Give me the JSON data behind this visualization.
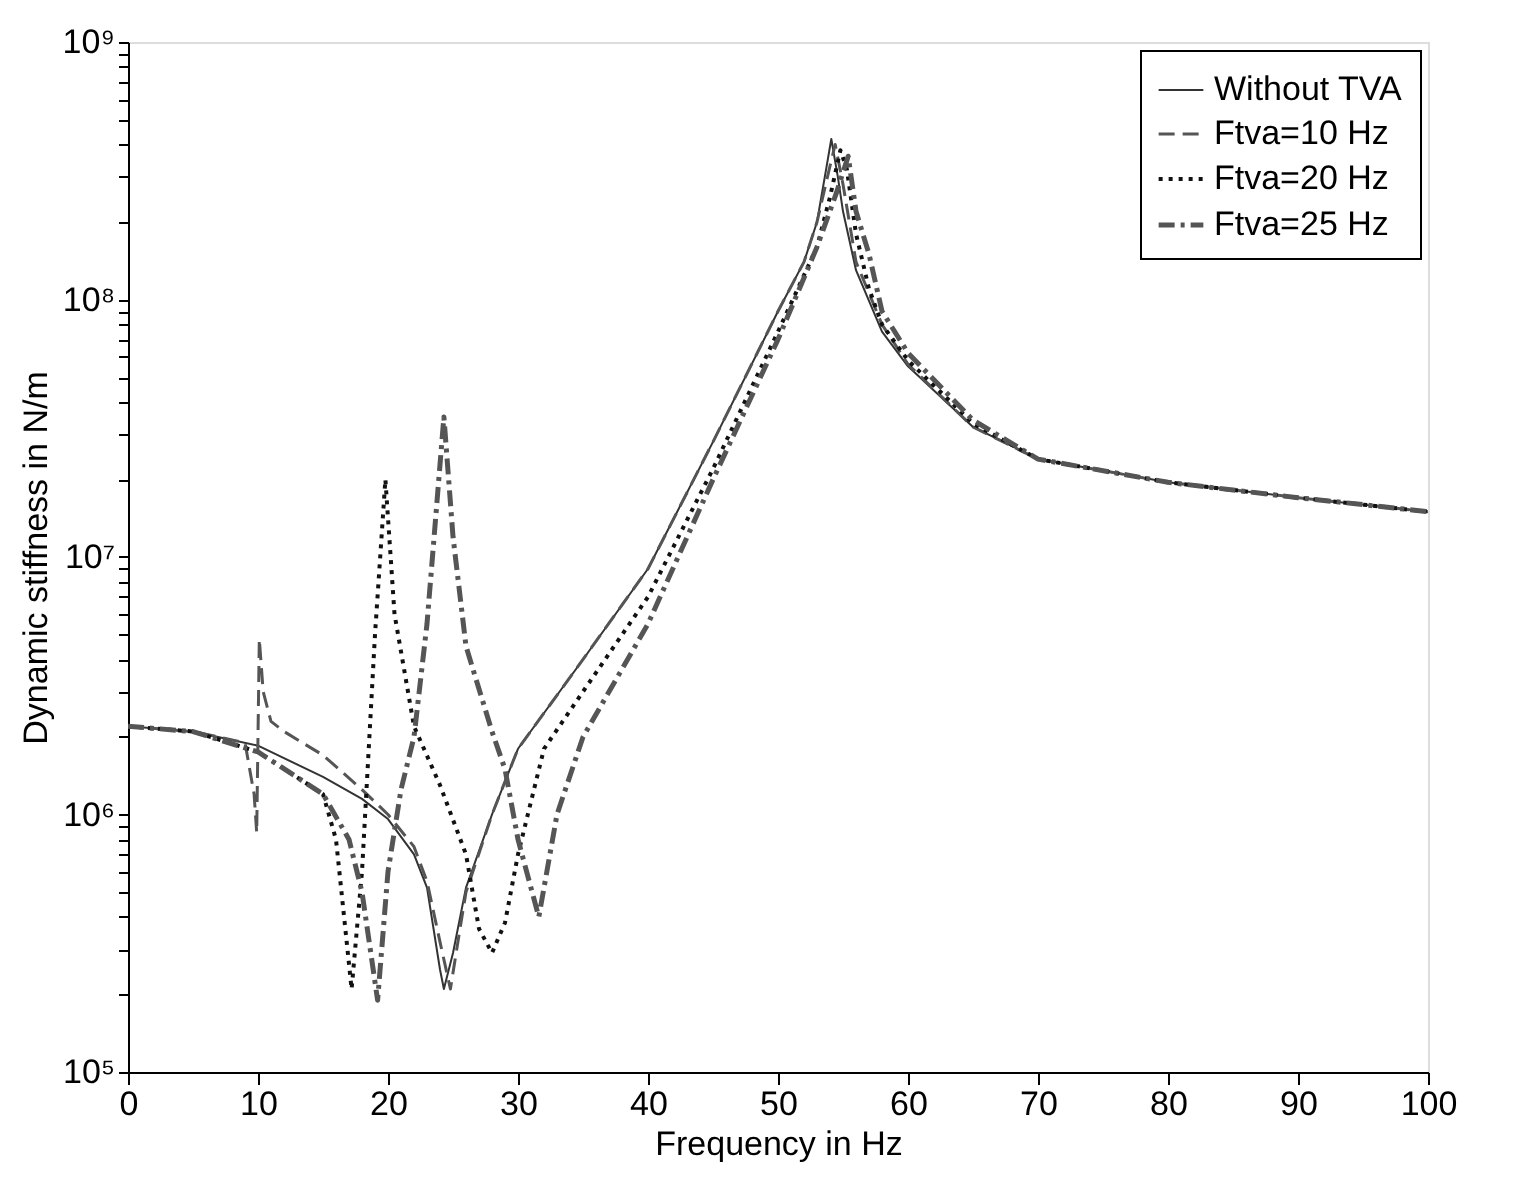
{
  "chart_data": {
    "type": "line",
    "xlabel": "Frequency in Hz",
    "ylabel": "Dynamic stiffness in N/m",
    "log": "y",
    "grid": false,
    "legend": "top right",
    "xlim": [
      0,
      100
    ],
    "xticks": [
      0,
      10,
      20,
      30,
      40,
      50,
      60,
      70,
      80,
      90,
      100
    ],
    "ylim": [
      100000,
      1000000000
    ],
    "yticks": [
      {
        "value": 100000,
        "label": "10⁵"
      },
      {
        "value": 200000,
        "label": null
      },
      {
        "value": 300000,
        "label": null
      },
      {
        "value": 400000,
        "label": null
      },
      {
        "value": 500000,
        "label": null
      },
      {
        "value": 600000,
        "label": null
      },
      {
        "value": 700000,
        "label": null
      },
      {
        "value": 800000,
        "label": null
      },
      {
        "value": 900000,
        "label": null
      },
      {
        "value": 1000000,
        "label": "10⁶"
      },
      {
        "value": 2000000,
        "label": null
      },
      {
        "value": 3000000,
        "label": null
      },
      {
        "value": 4000000,
        "label": null
      },
      {
        "value": 5000000,
        "label": null
      },
      {
        "value": 6000000,
        "label": null
      },
      {
        "value": 7000000,
        "label": null
      },
      {
        "value": 8000000,
        "label": null
      },
      {
        "value": 9000000,
        "label": null
      },
      {
        "value": 10000000,
        "label": "10⁷"
      },
      {
        "value": 20000000,
        "label": null
      },
      {
        "value": 30000000,
        "label": null
      },
      {
        "value": 40000000,
        "label": null
      },
      {
        "value": 50000000,
        "label": null
      },
      {
        "value": 60000000,
        "label": null
      },
      {
        "value": 70000000,
        "label": null
      },
      {
        "value": 80000000,
        "label": null
      },
      {
        "value": 90000000,
        "label": null
      },
      {
        "value": 100000000,
        "label": "10⁸"
      },
      {
        "value": 200000000,
        "label": null
      },
      {
        "value": 300000000,
        "label": null
      },
      {
        "value": 400000000,
        "label": null
      },
      {
        "value": 500000000,
        "label": null
      },
      {
        "value": 600000000,
        "label": null
      },
      {
        "value": 700000000,
        "label": null
      },
      {
        "value": 800000000,
        "label": null
      },
      {
        "value": 900000000,
        "label": null
      },
      {
        "value": 1000000000,
        "label": "10⁹"
      }
    ],
    "series": [
      {
        "name": "Without TVA",
        "color": "#333333",
        "line_style": "solid",
        "x": [
          0,
          5,
          10,
          15,
          18,
          20,
          22,
          23,
          24,
          24.3,
          25,
          26,
          28,
          30,
          35,
          40,
          45,
          50,
          52,
          53,
          53.7,
          54.1,
          54.6,
          55,
          56,
          58,
          60,
          65,
          70,
          80,
          90,
          100
        ],
        "values": [
          2200000,
          2100000,
          1850000,
          1400000,
          1150000,
          960000,
          700000,
          520000,
          250000,
          210000,
          290000,
          520000,
          1000000,
          1800000,
          4000000,
          9000000,
          28000000,
          90000000,
          140000000,
          200000000,
          320000000,
          420000000,
          300000000,
          220000000,
          130000000,
          75000000,
          55000000,
          32000000,
          24000000,
          19500000,
          17000000,
          15000000
        ]
      },
      {
        "name": "Ftva=10 Hz",
        "color": "#555555",
        "line_style": "dashed",
        "x": [
          0,
          5,
          9,
          9.7,
          9.9,
          10.1,
          10.4,
          11,
          12,
          15,
          18,
          20,
          22,
          23,
          24,
          24.8,
          25.5,
          26,
          28,
          30,
          35,
          40,
          45,
          50,
          52,
          53,
          54,
          54.4,
          55,
          56,
          58,
          60,
          65,
          70,
          80,
          90,
          100
        ],
        "values": [
          2200000,
          2100000,
          1900000,
          1200000,
          850000,
          4800000,
          3000000,
          2300000,
          2100000,
          1700000,
          1250000,
          1000000,
          750000,
          550000,
          320000,
          210000,
          350000,
          500000,
          1000000,
          1800000,
          4000000,
          9000000,
          28000000,
          90000000,
          140000000,
          200000000,
          330000000,
          400000000,
          280000000,
          140000000,
          80000000,
          56000000,
          32000000,
          24000000,
          19500000,
          17000000,
          15000000
        ]
      },
      {
        "name": "Ftva=20 Hz",
        "color": "#111111",
        "line_style": "dotted",
        "x": [
          0,
          5,
          10,
          15,
          16,
          17.2,
          18,
          19,
          19.8,
          20.5,
          22,
          24,
          26,
          27,
          28,
          29,
          30,
          32,
          35,
          40,
          45,
          50,
          53,
          54,
          54.8,
          55.3,
          56,
          57,
          58,
          60,
          65,
          70,
          80,
          90,
          100
        ],
        "values": [
          2200000,
          2100000,
          1750000,
          1200000,
          800000,
          210000,
          600000,
          5000000,
          20000000,
          6000000,
          2200000,
          1300000,
          700000,
          360000,
          290000,
          380000,
          700000,
          1800000,
          3000000,
          7000000,
          22000000,
          75000000,
          160000000,
          250000000,
          380000000,
          320000000,
          180000000,
          110000000,
          80000000,
          58000000,
          33000000,
          24000000,
          19500000,
          17000000,
          15000000
        ]
      },
      {
        "name": "Ftva=25 Hz",
        "color": "#555555",
        "line_style": "dashdot",
        "x": [
          0,
          5,
          10,
          15,
          17,
          18,
          19.2,
          20,
          21,
          22,
          23,
          24.3,
          25,
          26,
          28,
          29,
          30,
          31.6,
          33,
          35,
          40,
          45,
          50,
          53,
          54.5,
          55.4,
          56,
          57,
          58,
          60,
          65,
          70,
          80,
          90,
          100
        ],
        "values": [
          2200000,
          2100000,
          1750000,
          1200000,
          800000,
          500000,
          190000,
          600000,
          1250000,
          2000000,
          5500000,
          35000000,
          12000000,
          4500000,
          2100000,
          1500000,
          800000,
          400000,
          1000000,
          2000000,
          5500000,
          20000000,
          70000000,
          160000000,
          260000000,
          360000000,
          220000000,
          150000000,
          90000000,
          62000000,
          34000000,
          24000000,
          19500000,
          17000000,
          15000000
        ]
      }
    ]
  }
}
